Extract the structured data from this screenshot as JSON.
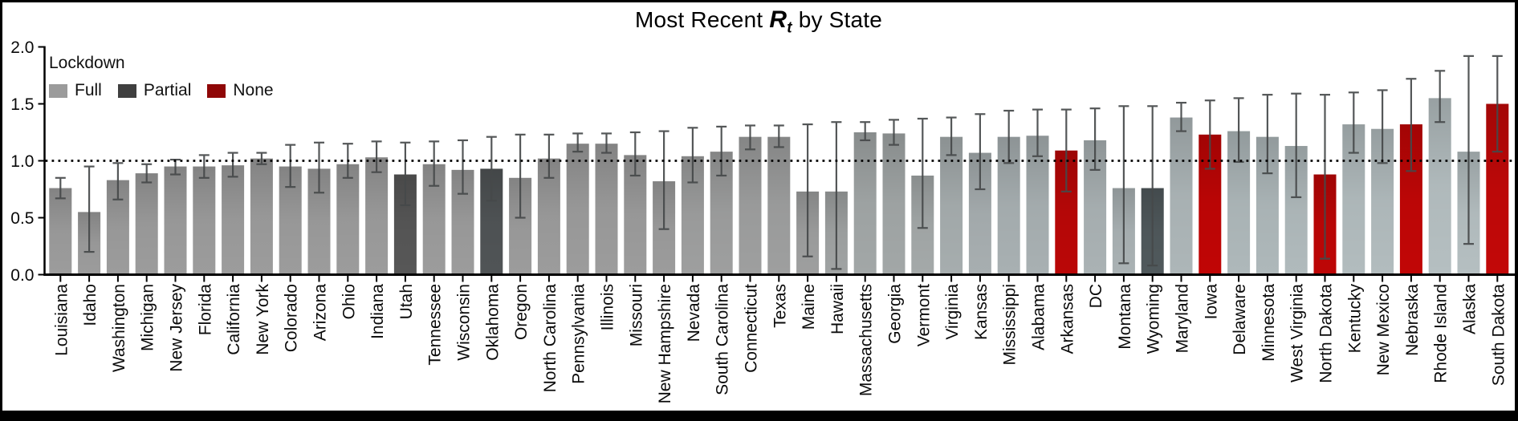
{
  "title": {
    "prefix": "Most Recent ",
    "math_r": "R",
    "math_sub": "t",
    "suffix": " by State"
  },
  "legend": {
    "title": "Lockdown",
    "items": [
      {
        "label": "Full",
        "color": "#9b9b9b"
      },
      {
        "label": "Partial",
        "color": "#3f3f3f"
      },
      {
        "label": "None",
        "color": "#8f0707"
      }
    ]
  },
  "chart_data": {
    "type": "bar",
    "title": "Most Recent Rt by State",
    "xlabel": "",
    "ylabel": "",
    "ylim": [
      0,
      2.0
    ],
    "yticks": [
      "0.0",
      "0.5",
      "1.0",
      "1.5",
      "2.0"
    ],
    "reference_line": 1.0,
    "grid": false,
    "legend_position": "upper-left",
    "error_bars": true,
    "axis_color": "#000000",
    "error_color": "#46494a",
    "states": [
      {
        "name": "Louisiana",
        "value": 0.76,
        "ci_low": 0.67,
        "ci_high": 0.85,
        "lockdown": "full",
        "fill": "#9c9c9c"
      },
      {
        "name": "Idaho",
        "value": 0.55,
        "ci_low": 0.2,
        "ci_high": 0.95,
        "lockdown": "full",
        "fill": "#9c9c9c"
      },
      {
        "name": "Washington",
        "value": 0.83,
        "ci_low": 0.66,
        "ci_high": 0.98,
        "lockdown": "full",
        "fill": "#9c9c9c"
      },
      {
        "name": "Michigan",
        "value": 0.89,
        "ci_low": 0.81,
        "ci_high": 0.97,
        "lockdown": "full",
        "fill": "#9c9c9c"
      },
      {
        "name": "New Jersey",
        "value": 0.95,
        "ci_low": 0.88,
        "ci_high": 1.01,
        "lockdown": "full",
        "fill": "#9c9c9c"
      },
      {
        "name": "Florida",
        "value": 0.95,
        "ci_low": 0.85,
        "ci_high": 1.05,
        "lockdown": "full",
        "fill": "#9c9c9c"
      },
      {
        "name": "California",
        "value": 0.96,
        "ci_low": 0.86,
        "ci_high": 1.07,
        "lockdown": "full",
        "fill": "#9c9c9c"
      },
      {
        "name": "New York",
        "value": 1.02,
        "ci_low": 0.97,
        "ci_high": 1.07,
        "lockdown": "full",
        "fill": "#9c9c9c"
      },
      {
        "name": "Colorado",
        "value": 0.95,
        "ci_low": 0.77,
        "ci_high": 1.14,
        "lockdown": "full",
        "fill": "#9c9c9c"
      },
      {
        "name": "Arizona",
        "value": 0.93,
        "ci_low": 0.72,
        "ci_high": 1.16,
        "lockdown": "full",
        "fill": "#9c9c9c"
      },
      {
        "name": "Ohio",
        "value": 0.97,
        "ci_low": 0.85,
        "ci_high": 1.15,
        "lockdown": "full",
        "fill": "#9c9c9c"
      },
      {
        "name": "Indiana",
        "value": 1.03,
        "ci_low": 0.9,
        "ci_high": 1.17,
        "lockdown": "full",
        "fill": "#9c9c9c"
      },
      {
        "name": "Utah",
        "value": 0.88,
        "ci_low": 0.61,
        "ci_high": 1.16,
        "lockdown": "partial",
        "fill": "#575757"
      },
      {
        "name": "Tennessee",
        "value": 0.97,
        "ci_low": 0.78,
        "ci_high": 1.17,
        "lockdown": "full",
        "fill": "#9c9c9c"
      },
      {
        "name": "Wisconsin",
        "value": 0.92,
        "ci_low": 0.71,
        "ci_high": 1.18,
        "lockdown": "full",
        "fill": "#9c9c9c"
      },
      {
        "name": "Oklahoma",
        "value": 0.93,
        "ci_low": 0.65,
        "ci_high": 1.21,
        "lockdown": "partial",
        "fill": "#505456"
      },
      {
        "name": "Oregon",
        "value": 0.85,
        "ci_low": 0.5,
        "ci_high": 1.23,
        "lockdown": "full",
        "fill": "#9c9c9c"
      },
      {
        "name": "North Carolina",
        "value": 1.02,
        "ci_low": 0.85,
        "ci_high": 1.23,
        "lockdown": "full",
        "fill": "#9c9c9c"
      },
      {
        "name": "Pennsylvania",
        "value": 1.15,
        "ci_low": 1.08,
        "ci_high": 1.24,
        "lockdown": "full",
        "fill": "#9c9c9c"
      },
      {
        "name": "Illinois",
        "value": 1.15,
        "ci_low": 1.07,
        "ci_high": 1.24,
        "lockdown": "full",
        "fill": "#9c9c9c"
      },
      {
        "name": "Missouri",
        "value": 1.05,
        "ci_low": 0.87,
        "ci_high": 1.25,
        "lockdown": "full",
        "fill": "#9c9c9c"
      },
      {
        "name": "New Hampshire",
        "value": 0.82,
        "ci_low": 0.4,
        "ci_high": 1.26,
        "lockdown": "full",
        "fill": "#9c9c9c"
      },
      {
        "name": "Nevada",
        "value": 1.04,
        "ci_low": 0.81,
        "ci_high": 1.29,
        "lockdown": "full",
        "fill": "#9e9f9f"
      },
      {
        "name": "South Carolina",
        "value": 1.08,
        "ci_low": 0.87,
        "ci_high": 1.3,
        "lockdown": "full",
        "fill": "#9e9f9f"
      },
      {
        "name": "Connecticut",
        "value": 1.21,
        "ci_low": 1.1,
        "ci_high": 1.31,
        "lockdown": "full",
        "fill": "#9e9f9f"
      },
      {
        "name": "Texas",
        "value": 1.21,
        "ci_low": 1.12,
        "ci_high": 1.31,
        "lockdown": "full",
        "fill": "#9e9f9f"
      },
      {
        "name": "Maine",
        "value": 0.73,
        "ci_low": 0.16,
        "ci_high": 1.32,
        "lockdown": "full",
        "fill": "#9e9f9f"
      },
      {
        "name": "Hawaii",
        "value": 0.73,
        "ci_low": 0.05,
        "ci_high": 1.34,
        "lockdown": "full",
        "fill": "#a0a3a3"
      },
      {
        "name": "Massachusetts",
        "value": 1.25,
        "ci_low": 1.18,
        "ci_high": 1.34,
        "lockdown": "full",
        "fill": "#a2a7a7"
      },
      {
        "name": "Georgia",
        "value": 1.24,
        "ci_low": 1.14,
        "ci_high": 1.36,
        "lockdown": "full",
        "fill": "#a2a7a7"
      },
      {
        "name": "Vermont",
        "value": 0.87,
        "ci_low": 0.41,
        "ci_high": 1.37,
        "lockdown": "full",
        "fill": "#a4a9a9"
      },
      {
        "name": "Virginia",
        "value": 1.21,
        "ci_low": 1.05,
        "ci_high": 1.38,
        "lockdown": "full",
        "fill": "#a6adae"
      },
      {
        "name": "Kansas",
        "value": 1.07,
        "ci_low": 0.75,
        "ci_high": 1.41,
        "lockdown": "full",
        "fill": "#a7aeb0"
      },
      {
        "name": "Mississippi",
        "value": 1.21,
        "ci_low": 0.98,
        "ci_high": 1.44,
        "lockdown": "full",
        "fill": "#a8b0b2"
      },
      {
        "name": "Alabama",
        "value": 1.22,
        "ci_low": 1.04,
        "ci_high": 1.45,
        "lockdown": "full",
        "fill": "#a8b0b2"
      },
      {
        "name": "Arkansas",
        "value": 1.09,
        "ci_low": 0.73,
        "ci_high": 1.45,
        "lockdown": "none",
        "fill": "#ba0707"
      },
      {
        "name": "DC",
        "value": 1.18,
        "ci_low": 0.92,
        "ci_high": 1.46,
        "lockdown": "full",
        "fill": "#aab2b4"
      },
      {
        "name": "Montana",
        "value": 0.76,
        "ci_low": 0.1,
        "ci_high": 1.48,
        "lockdown": "full",
        "fill": "#aab2b4"
      },
      {
        "name": "Wyoming",
        "value": 0.76,
        "ci_low": 0.08,
        "ci_high": 1.48,
        "lockdown": "partial",
        "fill": "#50595c"
      },
      {
        "name": "Maryland",
        "value": 1.38,
        "ci_low": 1.26,
        "ci_high": 1.51,
        "lockdown": "full",
        "fill": "#adb6b8"
      },
      {
        "name": "Iowa",
        "value": 1.23,
        "ci_low": 0.93,
        "ci_high": 1.53,
        "lockdown": "none",
        "fill": "#c00505"
      },
      {
        "name": "Delaware",
        "value": 1.26,
        "ci_low": 0.99,
        "ci_high": 1.55,
        "lockdown": "full",
        "fill": "#aeb8ba"
      },
      {
        "name": "Minnesota",
        "value": 1.21,
        "ci_low": 0.89,
        "ci_high": 1.58,
        "lockdown": "full",
        "fill": "#aeb8ba"
      },
      {
        "name": "West Virginia",
        "value": 1.13,
        "ci_low": 0.68,
        "ci_high": 1.59,
        "lockdown": "full",
        "fill": "#b0babc"
      },
      {
        "name": "North Dakota",
        "value": 0.88,
        "ci_low": 0.14,
        "ci_high": 1.58,
        "lockdown": "none",
        "fill": "#bd0606"
      },
      {
        "name": "Kentucky",
        "value": 1.32,
        "ci_low": 1.07,
        "ci_high": 1.6,
        "lockdown": "full",
        "fill": "#b2bcbe"
      },
      {
        "name": "New Mexico",
        "value": 1.28,
        "ci_low": 0.98,
        "ci_high": 1.62,
        "lockdown": "full",
        "fill": "#b2bcbe"
      },
      {
        "name": "Nebraska",
        "value": 1.32,
        "ci_low": 0.91,
        "ci_high": 1.72,
        "lockdown": "none",
        "fill": "#c10606"
      },
      {
        "name": "Rhode Island",
        "value": 1.55,
        "ci_low": 1.34,
        "ci_high": 1.79,
        "lockdown": "full",
        "fill": "#b5bfc1"
      },
      {
        "name": "Alaska",
        "value": 1.08,
        "ci_low": 0.27,
        "ci_high": 1.92,
        "lockdown": "full",
        "fill": "#b5bfc1"
      },
      {
        "name": "South Dakota",
        "value": 1.5,
        "ci_low": 1.08,
        "ci_high": 1.92,
        "lockdown": "none",
        "fill": "#c20808"
      }
    ]
  }
}
